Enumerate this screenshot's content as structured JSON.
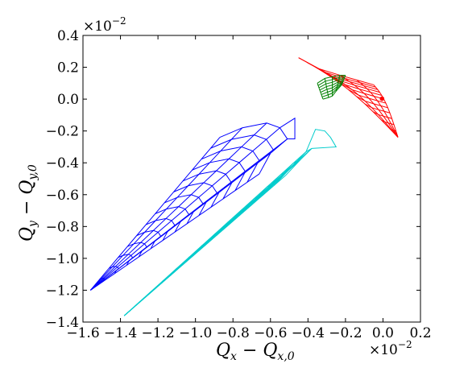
{
  "chart_data": {
    "type": "line",
    "title": "",
    "xlabel": "Q_x − Q_x,0",
    "ylabel": "Q_y − Q_y,0",
    "xlabel_parts": {
      "main": "Q",
      "sub1": "x",
      "dash": " − Q",
      "sub2": "x,0"
    },
    "ylabel_parts": {
      "main": "Q",
      "sub1": "y",
      "dash": " − Q",
      "sub2": "y,0"
    },
    "x_multiplier": "×10",
    "x_exponent": "−2",
    "y_multiplier": "×10",
    "y_exponent": "−2",
    "xlim": [
      -1.6,
      0.2
    ],
    "ylim": [
      -1.4,
      0.4
    ],
    "xticks": [
      -1.6,
      -1.4,
      -1.2,
      -1.0,
      -0.8,
      -0.6,
      -0.4,
      -0.2,
      0.0,
      0.2
    ],
    "yticks": [
      -1.4,
      -1.2,
      -1.0,
      -0.8,
      -0.6,
      -0.4,
      -0.2,
      0.0,
      0.2,
      0.4
    ],
    "xtick_labels": [
      "−1.6",
      "−1.4",
      "−1.2",
      "−1.0",
      "−0.8",
      "−0.6",
      "−0.4",
      "−0.2",
      "0.0",
      "0.2"
    ],
    "ytick_labels": [
      "−1.4",
      "−1.2",
      "−1.0",
      "−0.8",
      "−0.6",
      "−0.4",
      "−0.2",
      "0.0",
      "0.2",
      "0.4"
    ],
    "grid": false,
    "series": [
      {
        "color": "#0000ff",
        "mesh": {
          "tip": [
            -1.56,
            -1.2
          ],
          "rows": 14,
          "cols": 7,
          "end_row": [
            [
              -1.56,
              -1.2
            ],
            [
              -1.56,
              -1.2
            ],
            [
              -1.56,
              -1.2
            ],
            [
              -1.56,
              -1.2
            ],
            [
              -1.56,
              -1.2
            ],
            [
              -1.56,
              -1.2
            ],
            [
              -1.56,
              -1.2
            ]
          ],
          "far_row": [
            [
              -0.87,
              -0.24
            ],
            [
              -0.75,
              -0.18
            ],
            [
              -0.62,
              -0.15
            ],
            [
              -0.55,
              -0.18
            ],
            [
              -0.51,
              -0.25
            ],
            [
              -0.6,
              -0.34
            ],
            [
              -0.66,
              -0.47
            ]
          ],
          "bend": 0.0
        },
        "extra": [
          [
            [
              -0.55,
              -0.18
            ],
            [
              -0.47,
              -0.12
            ],
            [
              -0.47,
              -0.25
            ],
            [
              -0.51,
              -0.25
            ]
          ]
        ]
      },
      {
        "color": "#00cccc",
        "mesh": {
          "tip": [
            -1.38,
            -1.36
          ],
          "rows": 14,
          "cols": 7,
          "end_row": [
            [
              -1.38,
              -1.36
            ],
            [
              -1.38,
              -1.36
            ],
            [
              -1.38,
              -1.36
            ],
            [
              -1.38,
              -1.36
            ],
            [
              -1.38,
              -1.36
            ],
            [
              -1.38,
              -1.36
            ],
            [
              -1.38,
              -1.36
            ]
          ],
          "far_row": [
            [
              -0.72,
              -0.68
            ],
            [
              -0.62,
              -0.58
            ],
            [
              -0.5,
              -0.44
            ],
            [
              -0.41,
              -0.33
            ],
            [
              -0.38,
              -0.31
            ],
            [
              -0.44,
              -0.38
            ],
            [
              -0.52,
              -0.48
            ]
          ],
          "bend": 0.0
        },
        "extra": [
          [
            [
              -0.41,
              -0.33
            ],
            [
              -0.36,
              -0.19
            ],
            [
              -0.31,
              -0.2
            ],
            [
              -0.28,
              -0.24
            ],
            [
              -0.25,
              -0.3
            ],
            [
              -0.38,
              -0.31
            ]
          ]
        ]
      },
      {
        "color": "#ff0000",
        "mesh": {
          "tip": [
            0.08,
            -0.24
          ],
          "rows": 12,
          "cols": 5,
          "end_row": [
            [
              -0.45,
              0.26
            ],
            [
              -0.34,
              0.19
            ],
            [
              -0.23,
              0.15
            ],
            [
              -0.14,
              0.12
            ],
            [
              -0.05,
              0.09
            ]
          ],
          "far_row": [
            [
              0.08,
              -0.24
            ],
            [
              0.08,
              -0.24
            ],
            [
              0.08,
              -0.24
            ],
            [
              0.08,
              -0.24
            ],
            [
              0.08,
              -0.24
            ]
          ],
          "bend": 0.05
        },
        "extra": []
      },
      {
        "color": "#008000",
        "mesh": {
          "tip": [
            -0.28,
            0.05
          ],
          "rows": 7,
          "cols": 5,
          "end_row": [
            [
              -0.35,
              0.1
            ],
            [
              -0.31,
              0.13
            ],
            [
              -0.27,
              0.14
            ],
            [
              -0.23,
              0.15
            ],
            [
              -0.2,
              0.15
            ]
          ],
          "far_row": [
            [
              -0.32,
              0.0
            ],
            [
              -0.29,
              0.01
            ],
            [
              -0.27,
              0.02
            ],
            [
              -0.25,
              0.05
            ],
            [
              -0.22,
              0.09
            ]
          ],
          "bend": 0.0
        },
        "extra": []
      }
    ],
    "markers": [
      {
        "x": -0.005,
        "y": 0.003,
        "color": "#ff0000"
      }
    ]
  }
}
